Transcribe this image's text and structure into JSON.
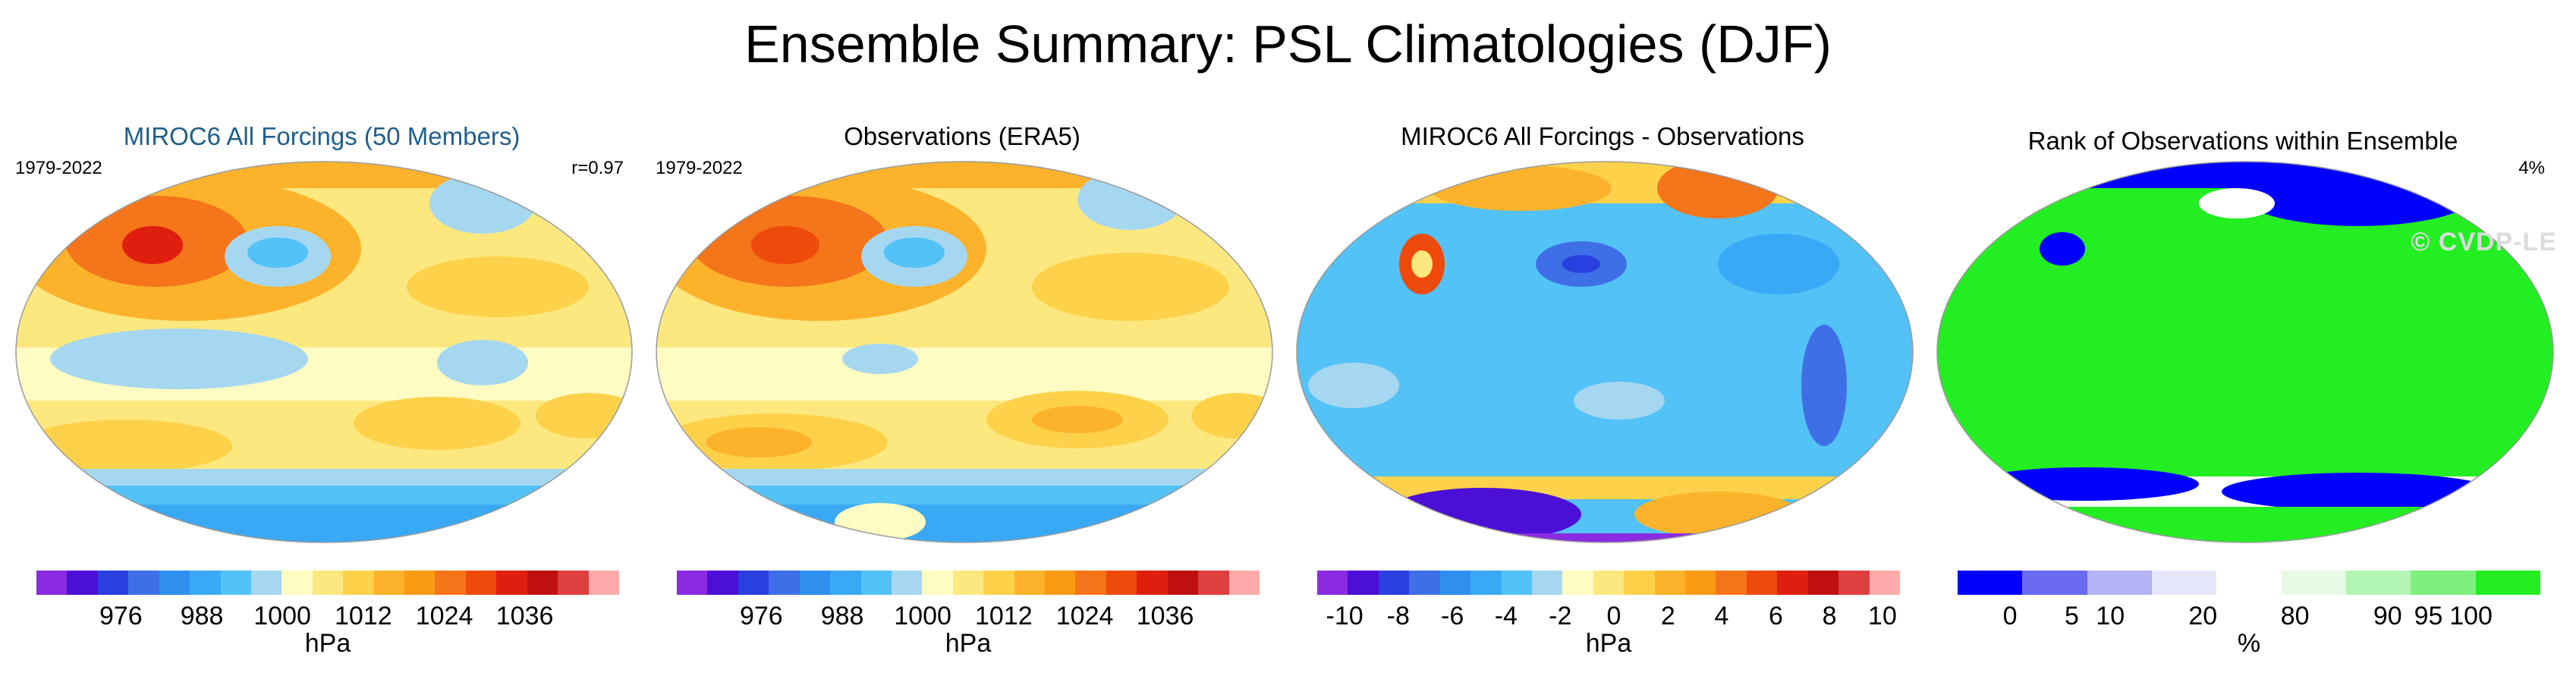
{
  "title": "Ensemble Summary: PSL Climatologies (DJF)",
  "watermark": "© CVDP-LE",
  "panels": [
    {
      "title": "MIROC6 All Forcings (50 Members)",
      "left_label": "1979-2022",
      "right_label": "r=0.97",
      "colorbar": {
        "colors": [
          "#8a2be2",
          "#4b0fd6",
          "#2a3fe0",
          "#3f6fe6",
          "#2f8fef",
          "#3aa9f5",
          "#52c2f7",
          "#a6d7f0",
          "#fefcc3",
          "#fde880",
          "#fdd24a",
          "#fcb32b",
          "#fa9a15",
          "#f5751a",
          "#ee4a0c",
          "#e01e0e",
          "#c00f0f",
          "#de3f3f",
          "#ffaaaa"
        ],
        "ticks": [
          "976",
          "988",
          "1000",
          "1012",
          "1024",
          "1036"
        ],
        "unit": "hPa"
      }
    },
    {
      "title": "Observations (ERA5)",
      "left_label": "1979-2022",
      "right_label": "",
      "colorbar": {
        "colors": [
          "#8a2be2",
          "#4b0fd6",
          "#2a3fe0",
          "#3f6fe6",
          "#2f8fef",
          "#3aa9f5",
          "#52c2f7",
          "#a6d7f0",
          "#fefcc3",
          "#fde880",
          "#fdd24a",
          "#fcb32b",
          "#fa9a15",
          "#f5751a",
          "#ee4a0c",
          "#e01e0e",
          "#c00f0f",
          "#de3f3f",
          "#ffaaaa"
        ],
        "ticks": [
          "976",
          "988",
          "1000",
          "1012",
          "1024",
          "1036"
        ],
        "unit": "hPa"
      }
    },
    {
      "title": "MIROC6 All Forcings - Observations",
      "left_label": "",
      "right_label": "",
      "colorbar": {
        "colors": [
          "#8a2be2",
          "#4b0fd6",
          "#2a3fe0",
          "#3f6fe6",
          "#2f8fef",
          "#3aa9f5",
          "#52c2f7",
          "#a6d7f0",
          "#fefcc3",
          "#fde880",
          "#fdd24a",
          "#fcb32b",
          "#fa9a15",
          "#f5751a",
          "#ee4a0c",
          "#e01e0e",
          "#c00f0f",
          "#de3f3f",
          "#ffaaaa"
        ],
        "ticks": [
          "-10",
          "-8",
          "-6",
          "-4",
          "-2",
          "0",
          "2",
          "4",
          "6",
          "8",
          "10"
        ],
        "unit": "hPa"
      }
    },
    {
      "title": "Rank of Observations within Ensemble",
      "left_label": "",
      "right_label": "4%",
      "colorbar": {
        "colors": [
          "#0000ff",
          "#6a6af2",
          "#b3b3f5",
          "#e6e6fb",
          "#ffffff",
          "#e6fbe6",
          "#b3f5b3",
          "#7ef07e",
          "#22ee22"
        ],
        "ticks": [
          "0",
          "5",
          "10",
          "20",
          "80",
          "90",
          "95",
          "100"
        ],
        "unit": "%"
      }
    }
  ]
}
